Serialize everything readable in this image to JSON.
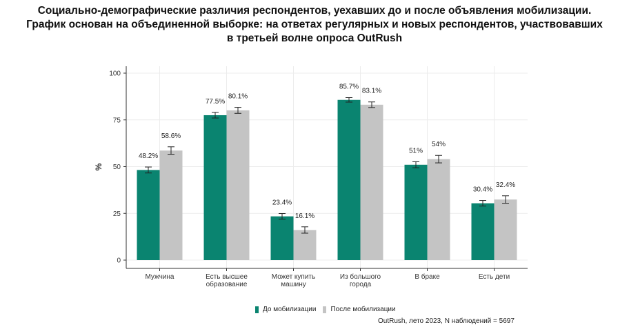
{
  "title_lines": [
    "Социально-демографические различия респондентов, уехавших до и после объявления мобилизации.",
    "График основан на объединенной выборке: на ответах регулярных и новых респондентов, участвовавших",
    "в третьей волне опроса OutRush"
  ],
  "source": "OutRush, лето 2023, N наблюдений =  5697",
  "colors": {
    "before": "#0a8470",
    "after": "#c4c4c4"
  },
  "chart_data": {
    "type": "bar",
    "title": "Социально-демографические различия респондентов, уехавших до и после объявления мобилизации. График основан на объединенной выборке: на ответах регулярных и новых респондентов, участвовавших в третьей волне опроса OutRush",
    "xlabel": "",
    "ylabel": "%",
    "ylim": [
      0,
      100
    ],
    "yticks": [
      0,
      25,
      50,
      75,
      100
    ],
    "grid": true,
    "legend_position": "bottom",
    "categories": [
      [
        "Мужчина"
      ],
      [
        "Есть высшее",
        "образование"
      ],
      [
        "Может купить",
        "машину"
      ],
      [
        "Из большого",
        "города"
      ],
      [
        "В браке"
      ],
      [
        "Есть дети"
      ]
    ],
    "series": [
      {
        "name": "До мобилизации",
        "values": [
          48.2,
          77.5,
          23.4,
          85.7,
          51,
          30.4
        ],
        "labels": [
          "48.2%",
          "77.5%",
          "23.4%",
          "85.7%",
          "51%",
          "30.4%"
        ],
        "error": [
          1.6,
          1.5,
          1.5,
          1.2,
          1.6,
          1.5
        ]
      },
      {
        "name": "После мобилизации",
        "values": [
          58.6,
          80.1,
          16.1,
          83.1,
          54,
          32.4
        ],
        "labels": [
          "58.6%",
          "80.1%",
          "16.1%",
          "83.1%",
          "54%",
          "32.4%"
        ],
        "error": [
          2.0,
          1.6,
          1.7,
          1.5,
          2.0,
          2.0
        ]
      }
    ]
  }
}
